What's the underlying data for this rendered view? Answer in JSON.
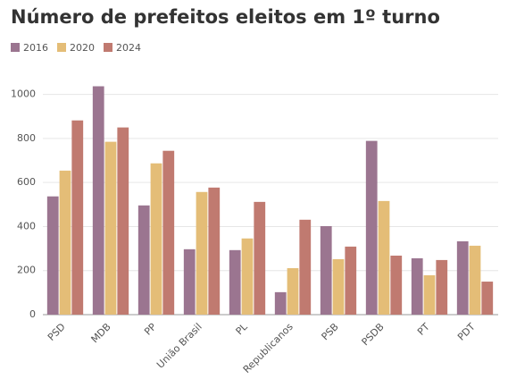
{
  "chart_data": {
    "type": "bar",
    "title": "Número de prefeitos eleitos em 1º turno",
    "categories": [
      "PSD",
      "MDB",
      "PP",
      "União Brasil",
      "PL",
      "Republicanos",
      "PSB",
      "PSDB",
      "PT",
      "PDT"
    ],
    "series": [
      {
        "name": "2016",
        "color": "#9b7590",
        "values": [
          537,
          1037,
          496,
          297,
          293,
          102,
          402,
          789,
          256,
          333
        ]
      },
      {
        "name": "2020",
        "color": "#e4bd77",
        "values": [
          654,
          785,
          687,
          557,
          346,
          211,
          252,
          516,
          179,
          313
        ]
      },
      {
        "name": "2024",
        "color": "#c07a70",
        "values": [
          882,
          850,
          744,
          577,
          512,
          431,
          309,
          268,
          248,
          150
        ]
      }
    ],
    "ylim": [
      0,
      1100
    ],
    "yticks": [
      0,
      200,
      400,
      600,
      800,
      1000
    ],
    "grid": true
  }
}
